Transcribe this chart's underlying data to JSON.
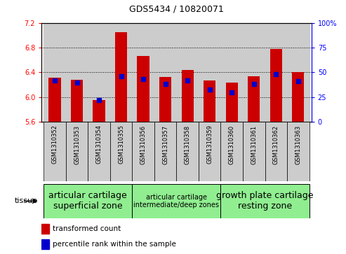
{
  "title": "GDS5434 / 10820071",
  "samples": [
    "GSM1310352",
    "GSM1310353",
    "GSM1310354",
    "GSM1310355",
    "GSM1310356",
    "GSM1310357",
    "GSM1310358",
    "GSM1310359",
    "GSM1310360",
    "GSM1310361",
    "GSM1310362",
    "GSM1310363"
  ],
  "transformed_count": [
    6.32,
    6.28,
    5.95,
    7.05,
    6.66,
    6.33,
    6.44,
    6.27,
    6.23,
    6.34,
    6.78,
    6.4
  ],
  "percentile_rank": [
    42,
    40,
    22,
    46,
    43,
    38,
    42,
    33,
    30,
    38,
    48,
    41
  ],
  "y_min": 5.6,
  "y_max": 7.2,
  "y_ticks": [
    5.6,
    6.0,
    6.4,
    6.8,
    7.2
  ],
  "y2_ticks": [
    0,
    25,
    50,
    75,
    100
  ],
  "bar_color": "#cc0000",
  "blue_color": "#0000cc",
  "col_bg_color": "#cccccc",
  "plot_bg_color": "#ffffff",
  "group_color": "#90ee90",
  "group_configs": [
    {
      "start": 0,
      "end": 3,
      "label": "articular cartilage\nsuperficial zone",
      "fontsize": 9
    },
    {
      "start": 4,
      "end": 7,
      "label": "articular cartilage\nintermediate/deep zones",
      "fontsize": 7
    },
    {
      "start": 8,
      "end": 11,
      "label": "growth plate cartilage\nresting zone",
      "fontsize": 9
    }
  ],
  "tissue_label": "tissue",
  "legend_red": "transformed count",
  "legend_blue": "percentile rank within the sample",
  "title_fontsize": 9,
  "tick_fontsize": 7,
  "xlabel_fontsize": 6
}
